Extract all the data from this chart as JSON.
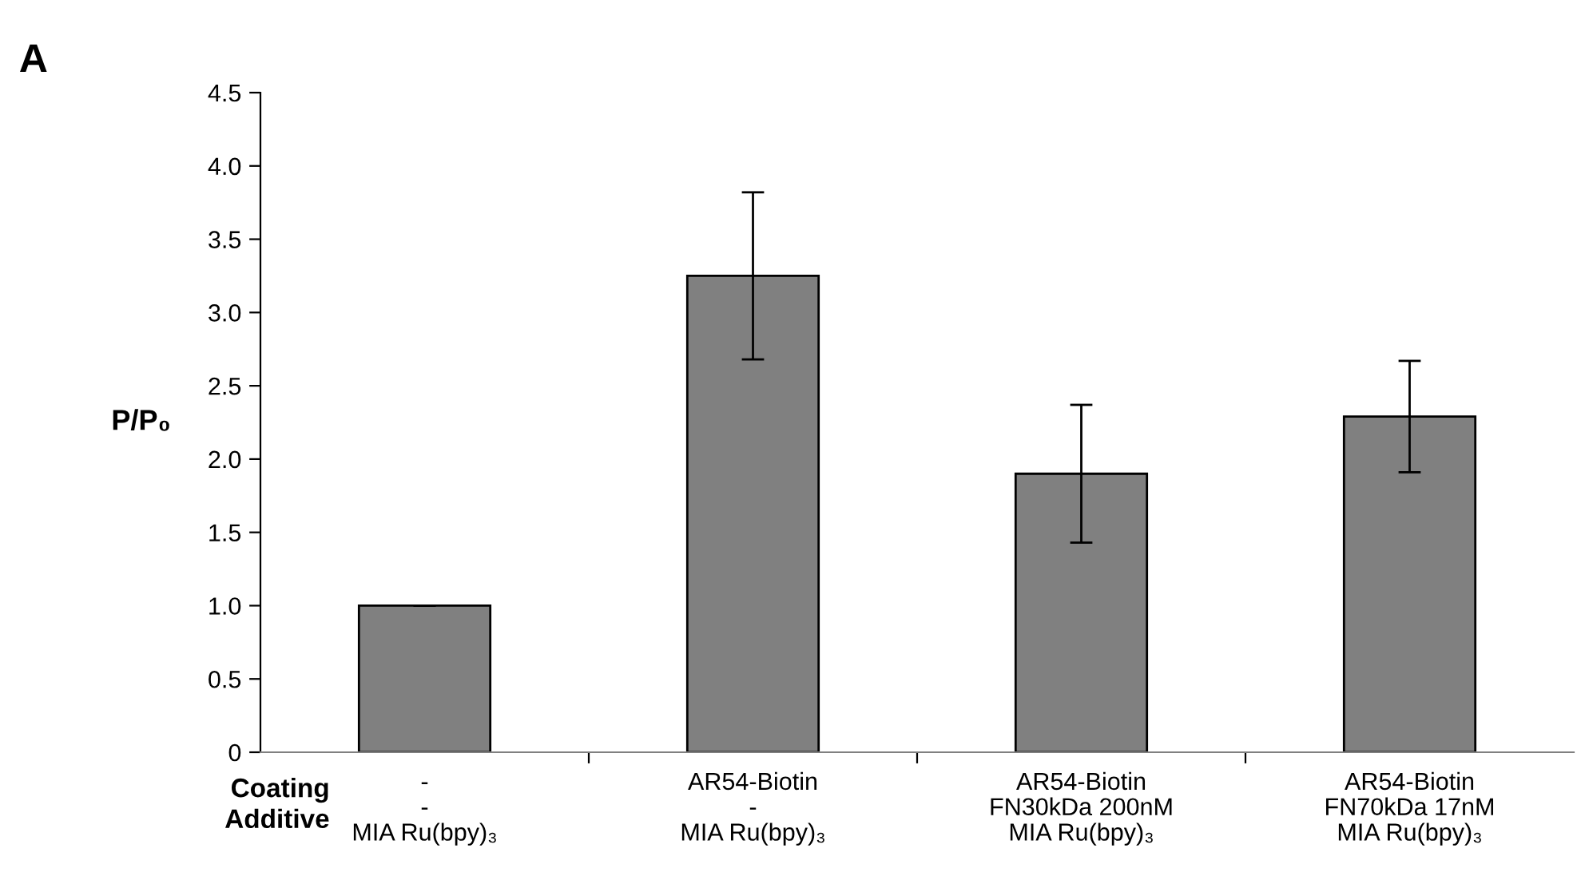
{
  "chart_data": {
    "type": "bar",
    "ylabel": "P/P₀",
    "categories": [
      "-\n-\nMIA Ru(bpy)₃",
      "AR54-Biotin\n-\nMIA Ru(bpy)₃",
      "AR54-Biotin\nFN30kDa 200nM\nMIA Ru(bpy)₃",
      "AR54-Biotin\nFN70kDa 17nM\nMIA Ru(bpy)₃"
    ],
    "values": [
      1.0,
      3.25,
      1.9,
      2.29
    ],
    "errors": [
      0,
      0.57,
      0.47,
      0.38
    ],
    "color": "#808080",
    "ylim": [
      0,
      4.5
    ],
    "yticks": [
      0,
      {
        "value": 0.5,
        "label": "0.5"
      },
      {
        "value": 1,
        "label": "1.0"
      },
      {
        "value": 1.5,
        "label": "1.5"
      },
      {
        "value": 2,
        "label": "2.0"
      },
      {
        "value": 2.5,
        "label": "2.5"
      },
      {
        "value": 3,
        "label": "3.0"
      },
      {
        "value": 3.5,
        "label": "3.5"
      },
      {
        "value": 4,
        "label": "4.0"
      },
      {
        "value": 4.5,
        "label": "4.5"
      }
    ],
    "grid": false,
    "annotations": [
      "A",
      "Coating",
      "Additive"
    ]
  }
}
